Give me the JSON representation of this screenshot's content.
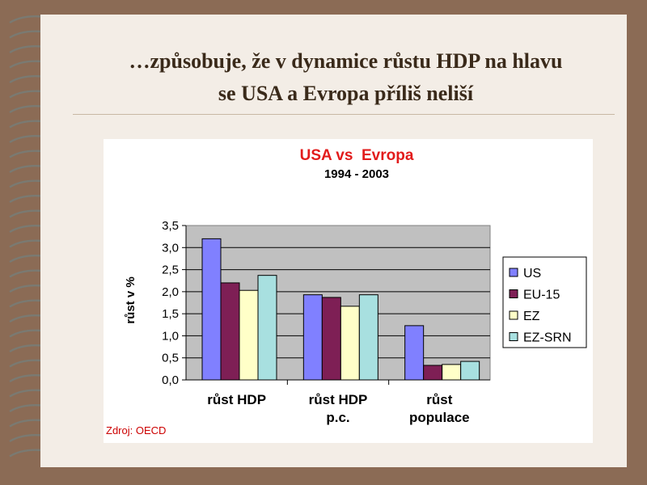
{
  "slide": {
    "title_line1": "…způsobuje, že v dynamice růstu HDP na hlavu",
    "title_line2": "se USA a Evropa příliš neliší"
  },
  "colors": {
    "background": "#8b6b55",
    "slide": "#f3ede6",
    "plot_area": "#c0c0c0",
    "title": "#e21b1b",
    "source": "#cc0000"
  },
  "chart_data": {
    "type": "bar",
    "title": "USA vs  Evropa",
    "subtitle": "1994 - 2003",
    "ylabel": "růst v %",
    "ylabel_visible": "růst v %",
    "ylim": [
      0,
      3.5
    ],
    "yticks": [
      "0,0",
      "0,5",
      "1,0",
      "1,5",
      "2,0",
      "2,5",
      "3,0",
      "3,5"
    ],
    "categories": [
      [
        "růst HDP"
      ],
      [
        "růst HDP",
        "p.c."
      ],
      [
        "růst",
        "populace"
      ]
    ],
    "series": [
      {
        "name": "US",
        "color": "#8080ff",
        "values": [
          3.2,
          1.93,
          1.23
        ]
      },
      {
        "name": "EU-15",
        "color": "#7e1f55",
        "values": [
          2.2,
          1.87,
          0.33
        ]
      },
      {
        "name": "EZ",
        "color": "#ffffc8",
        "values": [
          2.03,
          1.67,
          0.35
        ]
      },
      {
        "name": "EZ-SRN",
        "color": "#a8e0e0",
        "values": [
          2.37,
          1.93,
          0.42
        ]
      }
    ],
    "grid": true,
    "legend_position": "right",
    "source": "Zdroj: OECD"
  }
}
